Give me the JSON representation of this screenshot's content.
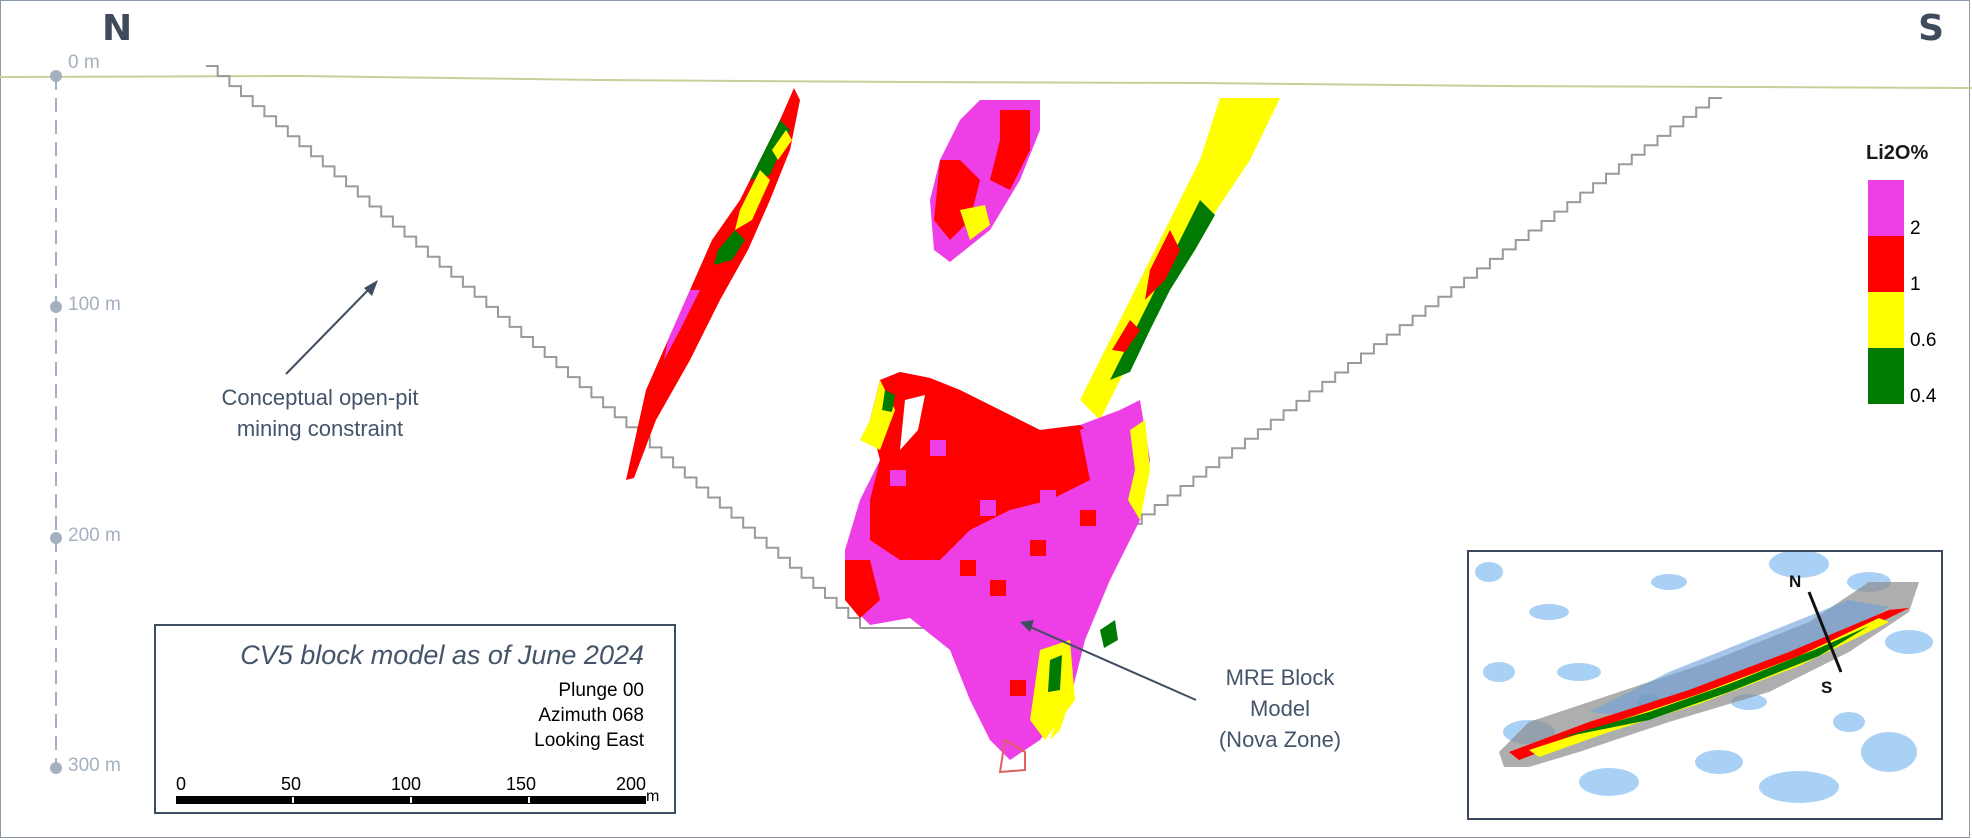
{
  "directions": {
    "left": "N",
    "right": "S"
  },
  "depth_axis": {
    "labels": [
      "0 m",
      "100 m",
      "200 m",
      "300 m"
    ]
  },
  "callouts": {
    "pit_line1": "Conceptual open-pit",
    "pit_line2": "mining constraint",
    "mre_line1": "MRE Block",
    "mre_line2": "Model",
    "mre_line3": "(Nova Zone)"
  },
  "info_box": {
    "title": "CV5 block model as of June 2024",
    "plunge": "Plunge 00",
    "azimuth": "Azimuth 068",
    "looking": "Looking East"
  },
  "scale_bar": {
    "ticks": [
      "0",
      "50",
      "100",
      "150",
      "200"
    ],
    "unit": "m"
  },
  "legend": {
    "title": "Li2O%",
    "bins": [
      {
        "color": "#ee3ee6",
        "label": "2"
      },
      {
        "color": "#ff0000",
        "label": "1"
      },
      {
        "color": "#ffff00",
        "label": "0.6"
      },
      {
        "color": "#007a00",
        "label": "0.4"
      }
    ]
  },
  "inset_map": {
    "labels": {
      "north": "N",
      "south": "S"
    }
  },
  "colors": {
    "high_grade": "#ee3ee6",
    "mid_grade": "#ff0000",
    "low_grade": "#ffff00",
    "lowest_grade": "#007a00",
    "pit_outline": "#9a9a9a",
    "callout_text": "#44546a",
    "water": "#a9d0f5"
  }
}
